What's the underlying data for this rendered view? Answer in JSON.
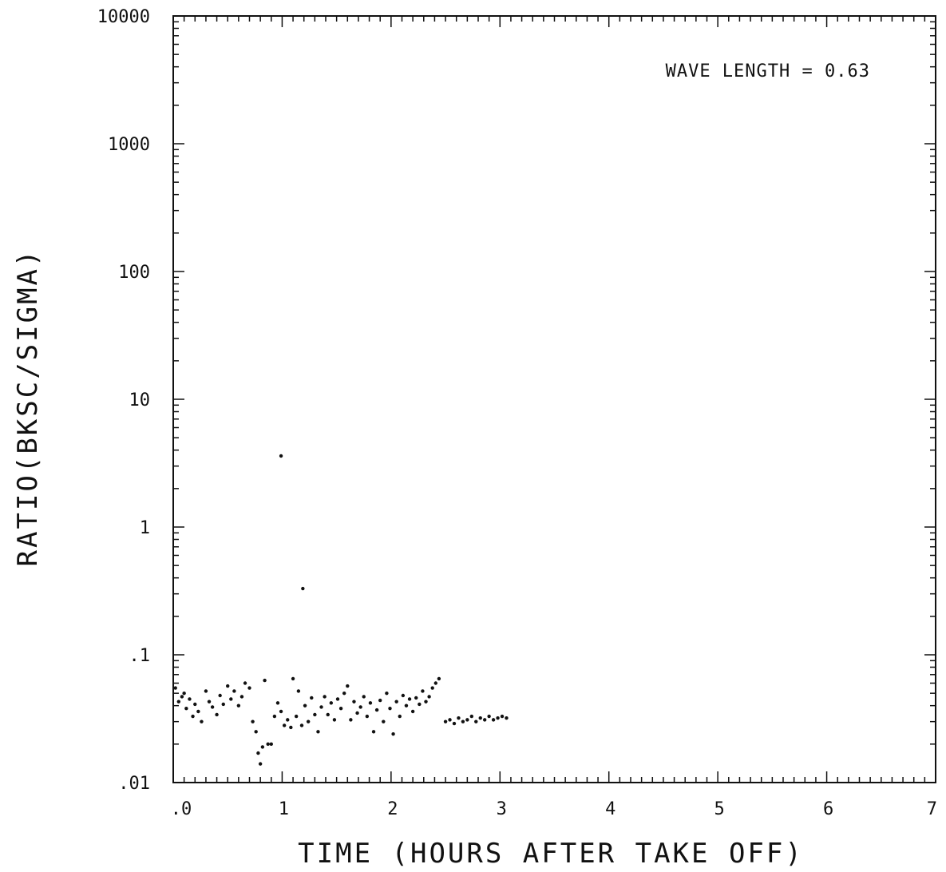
{
  "chart_data": {
    "type": "scatter",
    "title": "",
    "xlabel": "TIME (HOURS AFTER TAKE OFF)",
    "ylabel": "RATIO(BKSC/SIGMA)",
    "annotation": "WAVE LENGTH = 0.63",
    "xlim": [
      0,
      7
    ],
    "ylim": [
      0.01,
      10000
    ],
    "yscale": "log",
    "grid": false,
    "x_tick_labels": [
      ".0",
      "1",
      "2",
      "3",
      "4",
      "5",
      "6",
      "7"
    ],
    "x_tick_values": [
      0,
      1,
      2,
      3,
      4,
      5,
      6,
      7
    ],
    "y_tick_labels": [
      ".01",
      ".1",
      "1",
      "10",
      "100",
      "1000",
      "10000"
    ],
    "y_tick_values": [
      0.01,
      0.1,
      1,
      10,
      100,
      1000,
      10000
    ],
    "series": [
      {
        "marker_color": "#111111",
        "points": [
          [
            0.02,
            0.055
          ],
          [
            0.05,
            0.043
          ],
          [
            0.08,
            0.047
          ],
          [
            0.1,
            0.05
          ],
          [
            0.12,
            0.038
          ],
          [
            0.15,
            0.045
          ],
          [
            0.18,
            0.033
          ],
          [
            0.2,
            0.041
          ],
          [
            0.23,
            0.036
          ],
          [
            0.26,
            0.03
          ],
          [
            0.3,
            0.052
          ],
          [
            0.33,
            0.043
          ],
          [
            0.36,
            0.039
          ],
          [
            0.4,
            0.034
          ],
          [
            0.43,
            0.048
          ],
          [
            0.46,
            0.041
          ],
          [
            0.5,
            0.057
          ],
          [
            0.53,
            0.045
          ],
          [
            0.56,
            0.052
          ],
          [
            0.6,
            0.04
          ],
          [
            0.63,
            0.047
          ],
          [
            0.66,
            0.06
          ],
          [
            0.7,
            0.055
          ],
          [
            0.73,
            0.03
          ],
          [
            0.76,
            0.025
          ],
          [
            0.78,
            0.017
          ],
          [
            0.8,
            0.014
          ],
          [
            0.82,
            0.019
          ],
          [
            0.84,
            0.063
          ],
          [
            0.87,
            0.02
          ],
          [
            0.9,
            0.02
          ],
          [
            0.93,
            0.033
          ],
          [
            0.96,
            0.042
          ],
          [
            0.99,
            0.036
          ],
          [
            1.02,
            0.028
          ],
          [
            1.05,
            0.031
          ],
          [
            1.08,
            0.027
          ],
          [
            1.1,
            0.065
          ],
          [
            1.13,
            0.033
          ],
          [
            1.15,
            0.052
          ],
          [
            1.18,
            0.028
          ],
          [
            1.21,
            0.04
          ],
          [
            1.24,
            0.03
          ],
          [
            1.27,
            0.046
          ],
          [
            1.3,
            0.034
          ],
          [
            1.33,
            0.025
          ],
          [
            1.36,
            0.039
          ],
          [
            1.39,
            0.047
          ],
          [
            1.42,
            0.034
          ],
          [
            1.45,
            0.042
          ],
          [
            1.48,
            0.031
          ],
          [
            1.51,
            0.045
          ],
          [
            1.54,
            0.038
          ],
          [
            1.57,
            0.05
          ],
          [
            1.6,
            0.057
          ],
          [
            1.63,
            0.031
          ],
          [
            1.66,
            0.043
          ],
          [
            1.69,
            0.035
          ],
          [
            1.72,
            0.039
          ],
          [
            1.75,
            0.047
          ],
          [
            1.78,
            0.033
          ],
          [
            1.81,
            0.042
          ],
          [
            1.84,
            0.025
          ],
          [
            1.87,
            0.037
          ],
          [
            1.9,
            0.044
          ],
          [
            1.93,
            0.03
          ],
          [
            1.96,
            0.05
          ],
          [
            1.99,
            0.038
          ],
          [
            2.02,
            0.024
          ],
          [
            2.05,
            0.043
          ],
          [
            2.08,
            0.033
          ],
          [
            2.11,
            0.048
          ],
          [
            2.14,
            0.04
          ],
          [
            2.17,
            0.045
          ],
          [
            2.2,
            0.036
          ],
          [
            2.23,
            0.046
          ],
          [
            2.26,
            0.041
          ],
          [
            2.29,
            0.052
          ],
          [
            2.32,
            0.043
          ],
          [
            2.35,
            0.047
          ],
          [
            2.38,
            0.055
          ],
          [
            2.41,
            0.06
          ],
          [
            2.44,
            0.065
          ],
          [
            2.5,
            0.03
          ],
          [
            2.54,
            0.031
          ],
          [
            2.58,
            0.029
          ],
          [
            2.62,
            0.032
          ],
          [
            2.66,
            0.03
          ],
          [
            2.7,
            0.031
          ],
          [
            2.74,
            0.033
          ],
          [
            2.78,
            0.03
          ],
          [
            2.82,
            0.032
          ],
          [
            2.86,
            0.031
          ],
          [
            2.9,
            0.033
          ],
          [
            2.94,
            0.031
          ],
          [
            2.98,
            0.032
          ],
          [
            3.02,
            0.033
          ],
          [
            3.06,
            0.032
          ],
          [
            0.99,
            3.6
          ],
          [
            1.19,
            0.33
          ]
        ]
      }
    ]
  }
}
